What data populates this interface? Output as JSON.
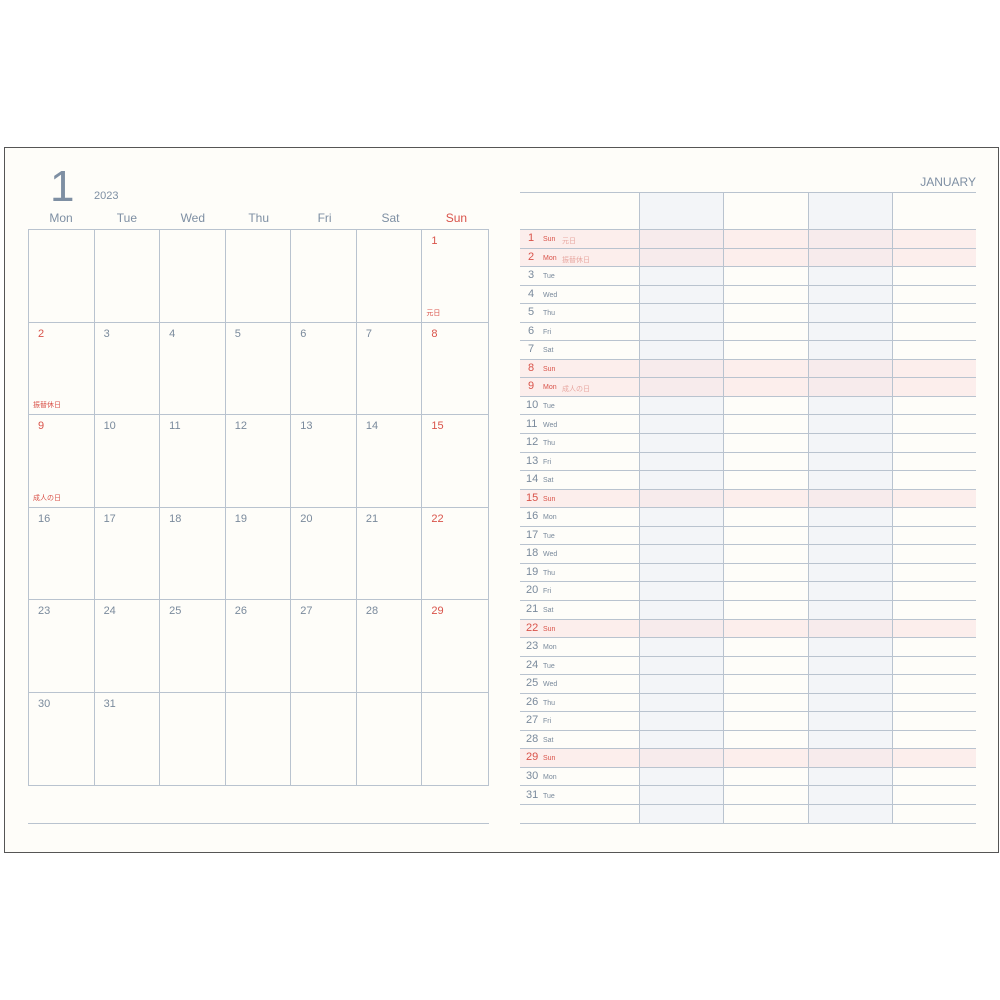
{
  "left_page": {
    "month_number": "1",
    "year": "2023",
    "weekdays": [
      "Mon",
      "Tue",
      "Wed",
      "Thu",
      "Fri",
      "Sat",
      "Sun"
    ],
    "weeks": [
      [
        null,
        null,
        null,
        null,
        null,
        null,
        {
          "day": "1",
          "red": true,
          "holiday": "元日"
        }
      ],
      [
        {
          "day": "2",
          "red": true,
          "holiday": "振替休日"
        },
        {
          "day": "3"
        },
        {
          "day": "4"
        },
        {
          "day": "5"
        },
        {
          "day": "6"
        },
        {
          "day": "7"
        },
        {
          "day": "8",
          "red": true
        }
      ],
      [
        {
          "day": "9",
          "red": true,
          "holiday": "成人の日"
        },
        {
          "day": "10"
        },
        {
          "day": "11"
        },
        {
          "day": "12"
        },
        {
          "day": "13"
        },
        {
          "day": "14"
        },
        {
          "day": "15",
          "red": true
        }
      ],
      [
        {
          "day": "16"
        },
        {
          "day": "17"
        },
        {
          "day": "18"
        },
        {
          "day": "19"
        },
        {
          "day": "20"
        },
        {
          "day": "21"
        },
        {
          "day": "22",
          "red": true
        }
      ],
      [
        {
          "day": "23"
        },
        {
          "day": "24"
        },
        {
          "day": "25"
        },
        {
          "day": "26"
        },
        {
          "day": "27"
        },
        {
          "day": "28"
        },
        {
          "day": "29",
          "red": true
        }
      ],
      [
        {
          "day": "30"
        },
        {
          "day": "31"
        },
        null,
        null,
        null,
        null,
        null
      ]
    ]
  },
  "right_page": {
    "month_name": "JANUARY",
    "days": [
      {
        "day": "1",
        "dow": "Sun",
        "red": true,
        "holiday": "元日"
      },
      {
        "day": "2",
        "dow": "Mon",
        "red": true,
        "holiday": "振替休日"
      },
      {
        "day": "3",
        "dow": "Tue"
      },
      {
        "day": "4",
        "dow": "Wed"
      },
      {
        "day": "5",
        "dow": "Thu"
      },
      {
        "day": "6",
        "dow": "Fri"
      },
      {
        "day": "7",
        "dow": "Sat"
      },
      {
        "day": "8",
        "dow": "Sun",
        "red": true
      },
      {
        "day": "9",
        "dow": "Mon",
        "red": true,
        "holiday": "成人の日"
      },
      {
        "day": "10",
        "dow": "Tue"
      },
      {
        "day": "11",
        "dow": "Wed"
      },
      {
        "day": "12",
        "dow": "Thu"
      },
      {
        "day": "13",
        "dow": "Fri"
      },
      {
        "day": "14",
        "dow": "Sat"
      },
      {
        "day": "15",
        "dow": "Sun",
        "red": true
      },
      {
        "day": "16",
        "dow": "Mon"
      },
      {
        "day": "17",
        "dow": "Tue"
      },
      {
        "day": "18",
        "dow": "Wed"
      },
      {
        "day": "19",
        "dow": "Thu"
      },
      {
        "day": "20",
        "dow": "Fri"
      },
      {
        "day": "21",
        "dow": "Sat"
      },
      {
        "day": "22",
        "dow": "Sun",
        "red": true
      },
      {
        "day": "23",
        "dow": "Mon"
      },
      {
        "day": "24",
        "dow": "Tue"
      },
      {
        "day": "25",
        "dow": "Wed"
      },
      {
        "day": "26",
        "dow": "Thu"
      },
      {
        "day": "27",
        "dow": "Fri"
      },
      {
        "day": "28",
        "dow": "Sat"
      },
      {
        "day": "29",
        "dow": "Sun",
        "red": true
      },
      {
        "day": "30",
        "dow": "Mon"
      },
      {
        "day": "31",
        "dow": "Tue"
      }
    ]
  },
  "colors": {
    "text": "#7a8a9c",
    "holiday_red": "#d9534a",
    "grid": "#b9c3cf",
    "shade": "#f3f5f8",
    "paper": "#fefdf9"
  }
}
